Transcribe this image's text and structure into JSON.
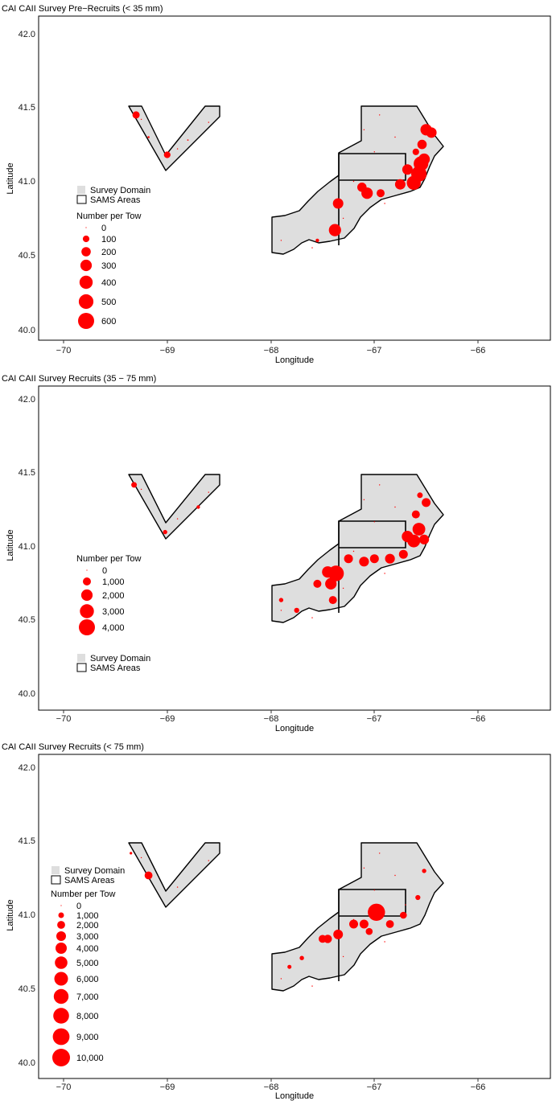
{
  "panels": [
    {
      "title": "CAI CAII Survey Pre−Recruits (< 35 mm)",
      "xlabel": "Longitude",
      "ylabel": "Latitude",
      "xticks": [
        "−70",
        "−69",
        "−68",
        "−67",
        "−66"
      ],
      "yticks": [
        "40.0",
        "40.5",
        "41.0",
        "41.5",
        "42.0"
      ],
      "legend_fill_label": "Survey Domain",
      "legend_box_label": "SAMS Areas",
      "size_legend_title": "Number per Tow",
      "size_legend_labels": [
        "0",
        "100",
        "200",
        "300",
        "400",
        "500",
        "600"
      ]
    },
    {
      "title": "CAI CAII Survey Recruits (35 − 75 mm)",
      "xlabel": "Longitude",
      "ylabel": "Latitude",
      "xticks": [
        "−70",
        "−69",
        "−68",
        "−67",
        "−66"
      ],
      "yticks": [
        "40.0",
        "40.5",
        "41.0",
        "41.5",
        "42.0"
      ],
      "legend_fill_label": "Survey Domain",
      "legend_box_label": "SAMS Areas",
      "size_legend_title": "Number per Tow",
      "size_legend_labels": [
        "0",
        "1,000",
        "2,000",
        "3,000",
        "4,000"
      ]
    },
    {
      "title": "CAI CAII Survey Recruits (< 75 mm)",
      "xlabel": "Longitude",
      "ylabel": "Latitude",
      "xticks": [
        "−70",
        "−69",
        "−68",
        "−67",
        "−66"
      ],
      "yticks": [
        "40.0",
        "40.5",
        "41.0",
        "41.5",
        "42.0"
      ],
      "legend_fill_label": "Survey Domain",
      "legend_box_label": "SAMS Areas",
      "size_legend_title": "Number per Tow",
      "size_legend_labels": [
        "0",
        "1,000",
        "2,000",
        "3,000",
        "4,000",
        "5,000",
        "6,000",
        "7,000",
        "8,000",
        "9,000",
        "10,000"
      ]
    }
  ],
  "colors": {
    "point": "#ff0000",
    "survey_domain_fill": "#dedede",
    "outline": "#000000"
  },
  "chart_data": [
    {
      "type": "scatter",
      "subtype": "bubble-map",
      "title": "CAI CAII Survey Pre−Recruits (< 35 mm)",
      "xlabel": "Longitude",
      "ylabel": "Latitude",
      "xlim": [
        -70.3,
        -65.3
      ],
      "ylim": [
        39.9,
        42.1
      ],
      "size_variable": "Number per Tow",
      "size_breaks": [
        0,
        100,
        200,
        300,
        400,
        500,
        600
      ],
      "points": [
        {
          "lon": -69.3,
          "lat": 41.45,
          "value": 120
        },
        {
          "lon": -69.0,
          "lat": 41.18,
          "value": 100
        },
        {
          "lon": -69.18,
          "lat": 41.3,
          "value": 10
        },
        {
          "lon": -68.8,
          "lat": 41.28,
          "value": 5
        },
        {
          "lon": -67.55,
          "lat": 40.6,
          "value": 30
        },
        {
          "lon": -67.38,
          "lat": 40.67,
          "value": 350
        },
        {
          "lon": -67.35,
          "lat": 40.85,
          "value": 250
        },
        {
          "lon": -67.12,
          "lat": 40.96,
          "value": 200
        },
        {
          "lon": -67.07,
          "lat": 40.92,
          "value": 300
        },
        {
          "lon": -66.94,
          "lat": 40.92,
          "value": 150
        },
        {
          "lon": -66.75,
          "lat": 40.98,
          "value": 250
        },
        {
          "lon": -66.68,
          "lat": 41.08,
          "value": 250
        },
        {
          "lon": -66.62,
          "lat": 40.99,
          "value": 450
        },
        {
          "lon": -66.57,
          "lat": 41.05,
          "value": 550
        },
        {
          "lon": -66.55,
          "lat": 41.12,
          "value": 500
        },
        {
          "lon": -66.52,
          "lat": 41.15,
          "value": 300
        },
        {
          "lon": -66.54,
          "lat": 41.25,
          "value": 200
        },
        {
          "lon": -66.5,
          "lat": 41.35,
          "value": 300
        },
        {
          "lon": -66.45,
          "lat": 41.33,
          "value": 250
        },
        {
          "lon": -66.6,
          "lat": 41.2,
          "value": 100
        }
      ]
    },
    {
      "type": "scatter",
      "subtype": "bubble-map",
      "title": "CAI CAII Survey Recruits (35 − 75 mm)",
      "xlabel": "Longitude",
      "ylabel": "Latitude",
      "xlim": [
        -70.3,
        -65.3
      ],
      "ylim": [
        39.9,
        42.1
      ],
      "size_variable": "Number per Tow",
      "size_breaks": [
        0,
        1000,
        2000,
        3000,
        4000
      ],
      "points": [
        {
          "lon": -69.32,
          "lat": 41.45,
          "value": 500
        },
        {
          "lon": -69.02,
          "lat": 41.13,
          "value": 300
        },
        {
          "lon": -68.7,
          "lat": 41.3,
          "value": 200
        },
        {
          "lon": -67.9,
          "lat": 40.67,
          "value": 300
        },
        {
          "lon": -67.75,
          "lat": 40.6,
          "value": 400
        },
        {
          "lon": -67.55,
          "lat": 40.78,
          "value": 1000
        },
        {
          "lon": -67.45,
          "lat": 40.86,
          "value": 2000
        },
        {
          "lon": -67.42,
          "lat": 40.78,
          "value": 2000
        },
        {
          "lon": -67.37,
          "lat": 40.85,
          "value": 3800
        },
        {
          "lon": -67.4,
          "lat": 40.67,
          "value": 1000
        },
        {
          "lon": -67.25,
          "lat": 40.95,
          "value": 1200
        },
        {
          "lon": -67.1,
          "lat": 40.93,
          "value": 1500
        },
        {
          "lon": -67.0,
          "lat": 40.95,
          "value": 1200
        },
        {
          "lon": -66.85,
          "lat": 40.95,
          "value": 1500
        },
        {
          "lon": -66.72,
          "lat": 40.98,
          "value": 1200
        },
        {
          "lon": -66.68,
          "lat": 41.1,
          "value": 2000
        },
        {
          "lon": -66.62,
          "lat": 41.07,
          "value": 2500
        },
        {
          "lon": -66.57,
          "lat": 41.15,
          "value": 2500
        },
        {
          "lon": -66.52,
          "lat": 41.08,
          "value": 1500
        },
        {
          "lon": -66.6,
          "lat": 41.25,
          "value": 1000
        },
        {
          "lon": -66.5,
          "lat": 41.33,
          "value": 1200
        },
        {
          "lon": -66.56,
          "lat": 41.38,
          "value": 500
        }
      ]
    },
    {
      "type": "scatter",
      "subtype": "bubble-map",
      "title": "CAI CAII Survey Recruits (< 75 mm)",
      "xlabel": "Longitude",
      "ylabel": "Latitude",
      "xlim": [
        -70.3,
        -65.3
      ],
      "ylim": [
        39.9,
        42.1
      ],
      "size_variable": "Number per Tow",
      "size_breaks": [
        0,
        1000,
        2000,
        3000,
        4000,
        5000,
        6000,
        7000,
        8000,
        9000,
        10000
      ],
      "points": [
        {
          "lon": -69.18,
          "lat": 41.3,
          "value": 2000
        },
        {
          "lon": -69.35,
          "lat": 41.45,
          "value": 200
        },
        {
          "lon": -67.82,
          "lat": 40.68,
          "value": 500
        },
        {
          "lon": -67.7,
          "lat": 40.74,
          "value": 600
        },
        {
          "lon": -67.5,
          "lat": 40.87,
          "value": 2000
        },
        {
          "lon": -67.45,
          "lat": 40.87,
          "value": 2200
        },
        {
          "lon": -67.35,
          "lat": 40.9,
          "value": 3000
        },
        {
          "lon": -67.2,
          "lat": 40.97,
          "value": 2500
        },
        {
          "lon": -67.1,
          "lat": 40.97,
          "value": 2500
        },
        {
          "lon": -67.05,
          "lat": 40.92,
          "value": 1500
        },
        {
          "lon": -66.98,
          "lat": 41.05,
          "value": 9500
        },
        {
          "lon": -66.85,
          "lat": 40.97,
          "value": 2000
        },
        {
          "lon": -66.72,
          "lat": 41.03,
          "value": 1500
        },
        {
          "lon": -66.58,
          "lat": 41.15,
          "value": 800
        },
        {
          "lon": -66.52,
          "lat": 41.33,
          "value": 600
        }
      ]
    }
  ]
}
